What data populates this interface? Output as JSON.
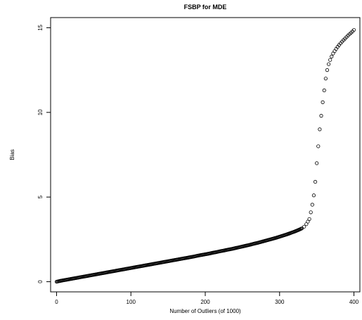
{
  "chart_data": {
    "type": "scatter",
    "title": "FSBP for MDE",
    "xlabel": "Number of Outliers (of 1000)",
    "ylabel": "Bias",
    "xlim": [
      -8,
      408
    ],
    "ylim": [
      -0.6,
      15.6
    ],
    "x_ticks": [
      0,
      100,
      200,
      300,
      400
    ],
    "y_ticks": [
      0,
      5,
      10,
      15
    ],
    "grid": false,
    "legend": "none",
    "marker": "open-circle",
    "series": [
      {
        "x": [
          0,
          5,
          10,
          15,
          20,
          25,
          30,
          35,
          40,
          45,
          50,
          55,
          60,
          65,
          70,
          75,
          80,
          85,
          90,
          95,
          100,
          105,
          110,
          115,
          120,
          125,
          130,
          135,
          140,
          145,
          150,
          155,
          160,
          165,
          170,
          175,
          180,
          185,
          190,
          195,
          200,
          205,
          210,
          215,
          220,
          225,
          230,
          235,
          240,
          245,
          250,
          255,
          260,
          265,
          270,
          275,
          280,
          285,
          290,
          295,
          300,
          305,
          310,
          315,
          320,
          325,
          330,
          333,
          336,
          338,
          340,
          342,
          344,
          346,
          348,
          350,
          352,
          354,
          356,
          358,
          360,
          362,
          364,
          366,
          368,
          370,
          372,
          374,
          376,
          378,
          380,
          382,
          384,
          386,
          388,
          390,
          392,
          394,
          396,
          398,
          400
        ],
        "y": [
          0.0,
          0.05,
          0.09,
          0.13,
          0.17,
          0.21,
          0.25,
          0.29,
          0.33,
          0.37,
          0.41,
          0.45,
          0.49,
          0.53,
          0.57,
          0.61,
          0.65,
          0.69,
          0.73,
          0.77,
          0.81,
          0.85,
          0.89,
          0.93,
          0.97,
          1.01,
          1.05,
          1.09,
          1.13,
          1.17,
          1.21,
          1.25,
          1.29,
          1.33,
          1.37,
          1.41,
          1.45,
          1.49,
          1.54,
          1.58,
          1.62,
          1.66,
          1.71,
          1.75,
          1.8,
          1.84,
          1.89,
          1.93,
          1.98,
          2.03,
          2.08,
          2.13,
          2.18,
          2.24,
          2.29,
          2.35,
          2.41,
          2.47,
          2.53,
          2.59,
          2.66,
          2.73,
          2.8,
          2.88,
          2.96,
          3.05,
          3.15,
          3.25,
          3.4,
          3.55,
          3.7,
          4.1,
          4.55,
          5.1,
          5.9,
          7.0,
          8.0,
          9.0,
          9.8,
          10.6,
          11.3,
          12.0,
          12.5,
          12.85,
          13.1,
          13.3,
          13.48,
          13.62,
          13.75,
          13.87,
          13.98,
          14.08,
          14.18,
          14.27,
          14.36,
          14.45,
          14.54,
          14.62,
          14.7,
          14.78,
          14.87
        ]
      }
    ]
  }
}
